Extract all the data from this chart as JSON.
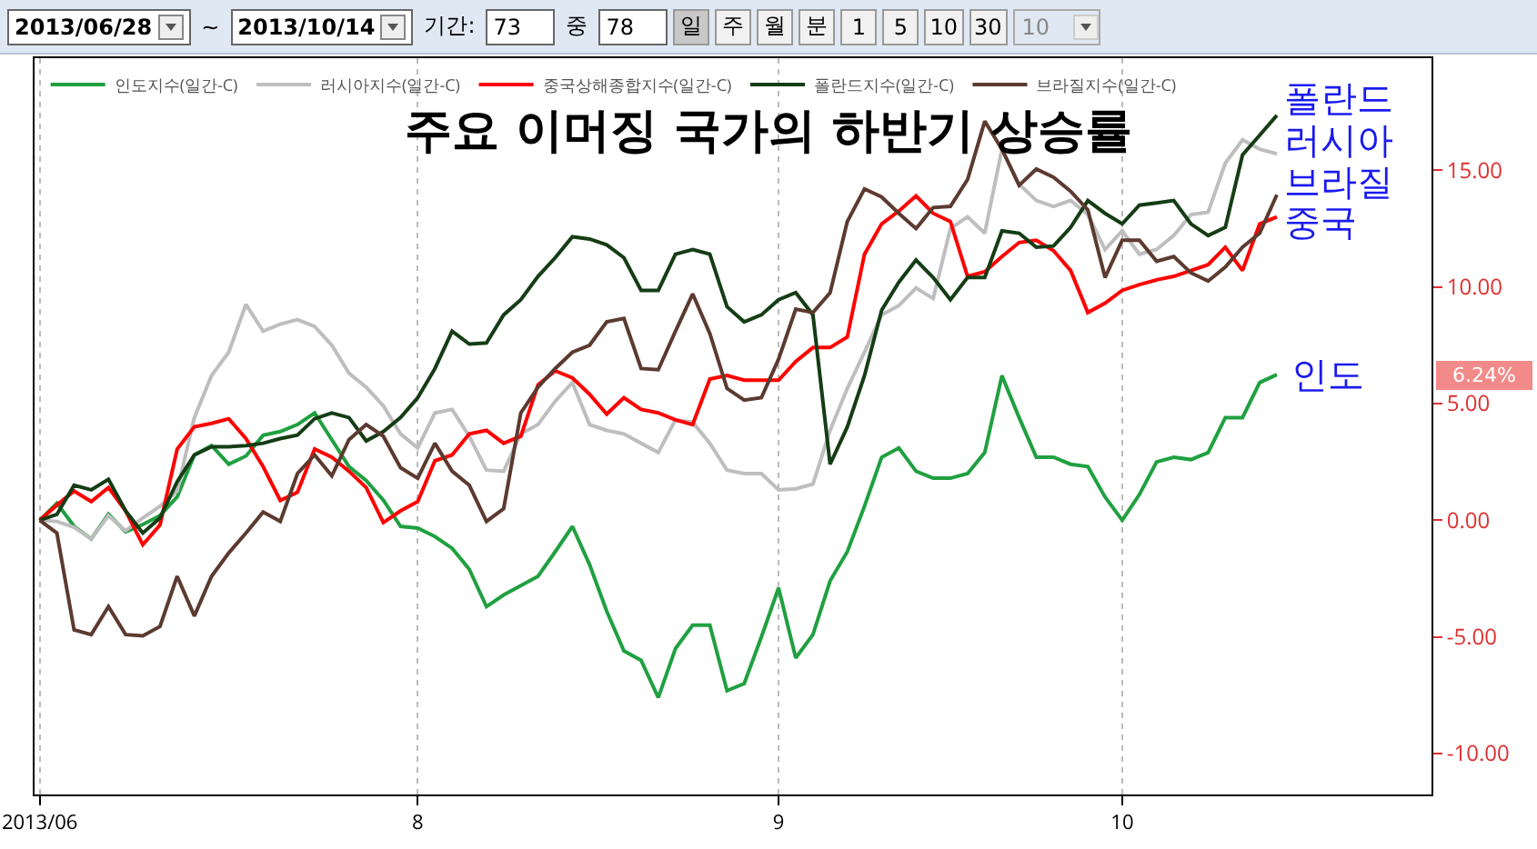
{
  "chart_data": {
    "type": "line",
    "title": "주요 이머징 국가의 하반기 상승률",
    "categories": [
      "2013/06",
      null,
      null,
      null,
      null,
      null,
      null,
      null,
      null,
      null,
      null,
      null,
      null,
      null,
      null,
      null,
      null,
      null,
      null,
      null,
      null,
      null,
      "8",
      null,
      null,
      null,
      null,
      null,
      null,
      null,
      null,
      null,
      null,
      null,
      null,
      null,
      null,
      null,
      null,
      null,
      null,
      null,
      null,
      "9",
      null,
      null,
      null,
      null,
      null,
      null,
      null,
      null,
      null,
      null,
      null,
      null,
      null,
      null,
      null,
      null,
      null,
      null,
      null,
      "10",
      null,
      null,
      null,
      null,
      null,
      null,
      null,
      null,
      null
    ],
    "series": [
      {
        "name": "인도지수(일간-C)",
        "color": "#20a040",
        "values": [
          0,
          0.73,
          -0.26,
          -0.8,
          0.26,
          -0.5,
          -0.18,
          0.2,
          1.0,
          2.8,
          3.2,
          2.4,
          2.75,
          3.64,
          3.8,
          4.1,
          4.6,
          3.45,
          2.3,
          1.7,
          0.86,
          -0.26,
          -0.34,
          -0.7,
          -1.2,
          -2.1,
          -3.7,
          -3.2,
          -2.8,
          -2.4,
          -1.35,
          -0.26,
          -1.9,
          -3.9,
          -5.6,
          -6.0,
          -7.6,
          -5.5,
          -4.5,
          -4.5,
          -7.3,
          -7.0,
          -5.0,
          -2.9,
          -5.9,
          -4.9,
          -2.6,
          -1.35,
          0.6,
          2.7,
          3.1,
          2.1,
          1.8,
          1.8,
          2.0,
          2.9,
          6.2,
          4.4,
          2.7,
          2.7,
          2.4,
          2.3,
          1.0,
          0.0,
          1.1,
          2.5,
          2.7,
          2.6,
          2.9,
          4.4,
          4.4,
          5.9,
          6.24
        ]
      },
      {
        "name": "러시아지수(일간-C)",
        "color": "#bebebe",
        "values": [
          0,
          -0.05,
          -0.3,
          -0.8,
          0.2,
          -0.45,
          0.1,
          0.6,
          1.25,
          4.4,
          6.2,
          7.2,
          9.25,
          8.1,
          8.4,
          8.6,
          8.3,
          7.5,
          6.3,
          5.7,
          4.9,
          3.7,
          3.1,
          4.6,
          4.75,
          3.6,
          2.15,
          2.1,
          3.7,
          4.1,
          5.1,
          5.9,
          4.1,
          3.85,
          3.7,
          3.3,
          2.9,
          4.3,
          4.2,
          3.3,
          2.15,
          2.0,
          2.0,
          1.3,
          1.35,
          1.55,
          3.85,
          5.65,
          7.2,
          8.8,
          9.2,
          9.95,
          9.5,
          12.5,
          13.0,
          12.3,
          15.9,
          14.4,
          13.7,
          13.45,
          13.7,
          13.1,
          11.6,
          12.4,
          11.4,
          11.6,
          12.2,
          13.1,
          13.2,
          15.3,
          16.3,
          15.9,
          15.7
        ]
      },
      {
        "name": "중국상해종합지수(일간-C)",
        "color": "#ff0000",
        "values": [
          0,
          0.65,
          1.25,
          0.8,
          1.4,
          0.4,
          -1.05,
          -0.2,
          3.05,
          4.0,
          4.15,
          4.35,
          3.5,
          2.3,
          0.85,
          1.2,
          3.05,
          2.7,
          2.1,
          1.4,
          -0.1,
          0.4,
          0.8,
          2.55,
          2.8,
          3.7,
          3.85,
          3.3,
          3.6,
          5.8,
          6.4,
          6.1,
          5.4,
          4.55,
          5.25,
          4.75,
          4.6,
          4.3,
          4.1,
          6.05,
          6.2,
          6.0,
          6.0,
          6.0,
          6.8,
          7.4,
          7.4,
          7.85,
          11.4,
          12.7,
          13.25,
          13.9,
          13.15,
          12.8,
          10.45,
          10.65,
          11.3,
          11.9,
          12.0,
          11.55,
          10.7,
          8.9,
          9.3,
          9.85,
          10.1,
          10.3,
          10.45,
          10.7,
          10.95,
          11.7,
          10.7,
          12.7,
          13.0
        ]
      },
      {
        "name": "폴란드지수(일간-C)",
        "color": "#153d15",
        "values": [
          0,
          0.25,
          1.5,
          1.3,
          1.75,
          0.4,
          -0.55,
          0.1,
          1.65,
          2.8,
          3.15,
          3.15,
          3.2,
          3.3,
          3.5,
          3.65,
          4.35,
          4.6,
          4.4,
          3.4,
          3.8,
          4.4,
          5.25,
          6.5,
          8.1,
          7.55,
          7.6,
          8.8,
          9.45,
          10.45,
          11.25,
          12.15,
          12.05,
          11.8,
          11.25,
          9.85,
          9.85,
          11.4,
          11.6,
          11.4,
          9.15,
          8.5,
          8.8,
          9.45,
          9.75,
          8.8,
          2.4,
          4.0,
          6.2,
          9.0,
          10.2,
          11.15,
          10.4,
          9.45,
          10.4,
          10.4,
          12.4,
          12.3,
          11.7,
          11.75,
          12.55,
          13.7,
          13.15,
          12.7,
          13.5,
          13.6,
          13.7,
          12.7,
          12.2,
          12.55,
          15.65,
          16.5,
          17.35
        ]
      },
      {
        "name": "브라질지수(일간-C)",
        "color": "#5c3a30",
        "values": [
          0,
          -0.55,
          -4.7,
          -4.9,
          -3.7,
          -4.9,
          -4.95,
          -4.55,
          -2.4,
          -4.1,
          -2.4,
          -1.4,
          -0.55,
          0.35,
          -0.05,
          2.0,
          2.8,
          1.9,
          3.45,
          4.1,
          3.6,
          2.25,
          1.8,
          3.3,
          2.1,
          1.5,
          -0.05,
          0.5,
          4.6,
          5.7,
          6.5,
          7.2,
          7.5,
          8.5,
          8.65,
          6.5,
          6.45,
          8.1,
          9.7,
          8.0,
          5.65,
          5.15,
          5.25,
          6.9,
          9.05,
          8.9,
          9.75,
          12.8,
          14.2,
          13.85,
          13.15,
          12.5,
          13.4,
          13.45,
          14.6,
          17.1,
          15.9,
          14.35,
          15.05,
          14.7,
          14.1,
          13.3,
          10.4,
          12.0,
          12.0,
          11.1,
          11.3,
          10.6,
          10.25,
          10.85,
          11.7,
          12.3,
          13.95
        ]
      }
    ],
    "ylim": [
      -11.75,
      19.8
    ],
    "yticks": [
      {
        "value": -10,
        "label": "-10.00"
      },
      {
        "value": -5,
        "label": "-5.00"
      },
      {
        "value": 0,
        "label": "0.00"
      },
      {
        "value": 5,
        "label": "5.00"
      },
      {
        "value": 10,
        "label": "10.00"
      },
      {
        "value": 15,
        "label": "15.00"
      }
    ],
    "grid": "x",
    "legend": "top left",
    "annotations": [
      "2013/06/28",
      "~",
      "2013/10/14",
      "기간:",
      "73",
      "중",
      "78",
      "일",
      "주",
      "월",
      "분",
      "1",
      "5",
      "10",
      "30",
      "10",
      "폴란드",
      "러시아",
      "브라질",
      "중국",
      "인도",
      "6.24%"
    ]
  }
}
